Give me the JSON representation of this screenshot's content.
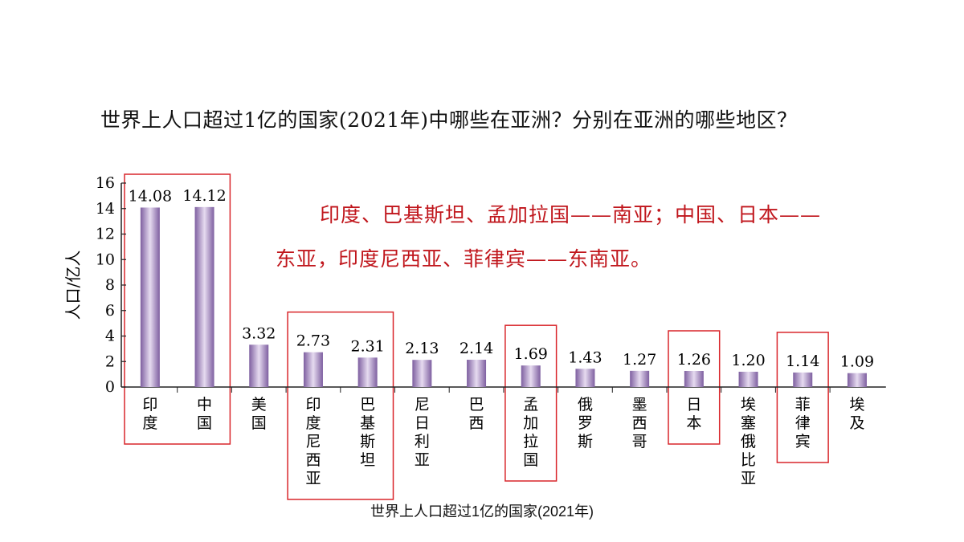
{
  "question": "世界上人口超过1亿的国家(2021年)中哪些在亚洲？分别在亚洲的哪些地区？",
  "answer": {
    "line1": "印度、巴基斯坦、孟加拉国——南亚；中国、日本——",
    "line2": "东亚，印度尼西亚、菲律宾——东南亚。"
  },
  "caption": "世界上人口超过1亿的国家(2021年)",
  "colors": {
    "answer": "#c0161c",
    "box": "#d9262b",
    "bar_dark": "#7e5fa0",
    "bar_light": "#e6dbf0"
  },
  "chart_data": {
    "type": "bar",
    "ylabel": "人口/亿人",
    "ylim": [
      0,
      16
    ],
    "yticks": [
      0,
      2,
      4,
      6,
      8,
      10,
      12,
      14,
      16
    ],
    "categories": [
      "印度",
      "中国",
      "美国",
      "印度尼西亚",
      "巴基斯坦",
      "尼日利亚",
      "巴西",
      "孟加拉国",
      "俄罗斯",
      "墨西哥",
      "日本",
      "埃塞俄比亚",
      "菲律宾",
      "埃及"
    ],
    "values": [
      14.08,
      14.12,
      3.32,
      2.73,
      2.31,
      2.13,
      2.14,
      1.69,
      1.43,
      1.27,
      1.26,
      1.2,
      1.14,
      1.09
    ],
    "value_labels": [
      "14.08",
      "14.12",
      "3.32",
      "2.73",
      "2.31",
      "2.13",
      "2.14",
      "1.69",
      "1.43",
      "1.27",
      "1.26",
      "1.20",
      "1.14",
      "1.09"
    ],
    "highlight_groups": [
      [
        "印度",
        "中国"
      ],
      [
        "印度尼西亚",
        "巴基斯坦"
      ],
      [
        "孟加拉国"
      ],
      [
        "日本"
      ],
      [
        "菲律宾"
      ]
    ]
  }
}
